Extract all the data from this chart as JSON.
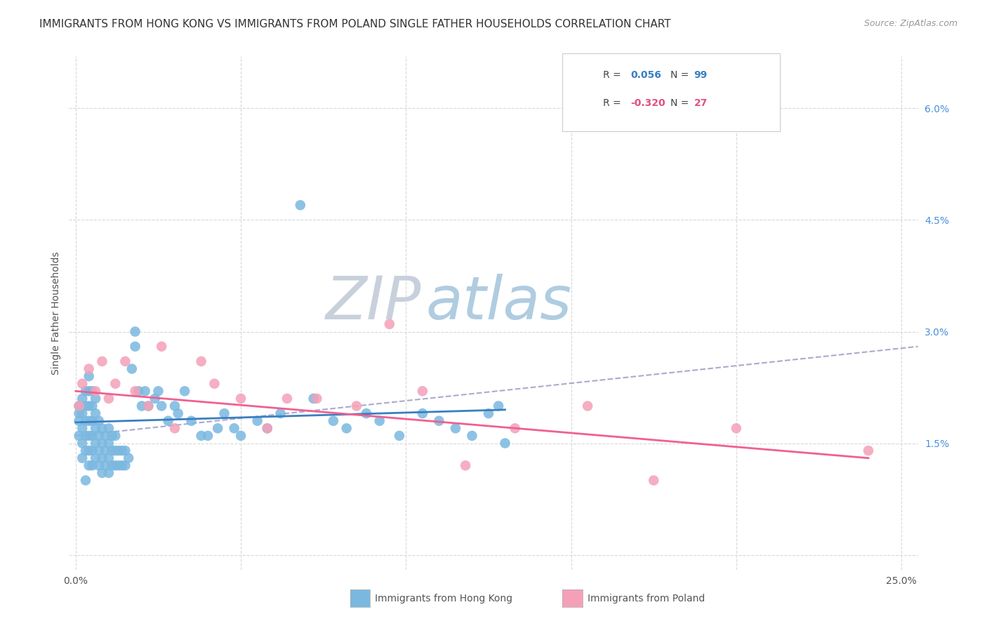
{
  "title": "IMMIGRANTS FROM HONG KONG VS IMMIGRANTS FROM POLAND SINGLE FATHER HOUSEHOLDS CORRELATION CHART",
  "source": "Source: ZipAtlas.com",
  "ylabel": "Single Father Households",
  "x_ticks": [
    0.0,
    0.05,
    0.1,
    0.15,
    0.2,
    0.25
  ],
  "y_ticks_right": [
    0.0,
    0.015,
    0.03,
    0.045,
    0.06
  ],
  "y_tick_labels_right": [
    "",
    "1.5%",
    "3.0%",
    "4.5%",
    "6.0%"
  ],
  "xlim": [
    -0.002,
    0.255
  ],
  "ylim": [
    -0.002,
    0.067
  ],
  "hk_color": "#7ab8e0",
  "pl_color": "#f4a0b8",
  "hk_line_color": "#3a7fc1",
  "pl_line_color": "#f06090",
  "trend_dash_color": "#aaaacc",
  "watermark_ZIP_color": "#c8d0dc",
  "watermark_atlas_color": "#b0cce0",
  "background_color": "#ffffff",
  "grid_color": "#d8d8d8",
  "title_fontsize": 11,
  "label_fontsize": 10,
  "tick_fontsize": 10,
  "hk_x": [
    0.001,
    0.001,
    0.001,
    0.001,
    0.002,
    0.002,
    0.002,
    0.002,
    0.002,
    0.003,
    0.003,
    0.003,
    0.003,
    0.003,
    0.003,
    0.004,
    0.004,
    0.004,
    0.004,
    0.004,
    0.004,
    0.004,
    0.005,
    0.005,
    0.005,
    0.005,
    0.005,
    0.005,
    0.006,
    0.006,
    0.006,
    0.006,
    0.006,
    0.007,
    0.007,
    0.007,
    0.007,
    0.008,
    0.008,
    0.008,
    0.008,
    0.009,
    0.009,
    0.009,
    0.01,
    0.01,
    0.01,
    0.01,
    0.011,
    0.011,
    0.011,
    0.012,
    0.012,
    0.012,
    0.013,
    0.013,
    0.014,
    0.014,
    0.015,
    0.015,
    0.016,
    0.017,
    0.018,
    0.018,
    0.019,
    0.02,
    0.021,
    0.022,
    0.024,
    0.025,
    0.026,
    0.028,
    0.03,
    0.031,
    0.033,
    0.035,
    0.038,
    0.04,
    0.043,
    0.045,
    0.048,
    0.05,
    0.055,
    0.058,
    0.062,
    0.068,
    0.072,
    0.078,
    0.082,
    0.088,
    0.092,
    0.098,
    0.105,
    0.11,
    0.115,
    0.12,
    0.125,
    0.128,
    0.13
  ],
  "hk_y": [
    0.018,
    0.019,
    0.02,
    0.016,
    0.015,
    0.017,
    0.019,
    0.021,
    0.013,
    0.014,
    0.016,
    0.018,
    0.02,
    0.022,
    0.01,
    0.012,
    0.014,
    0.016,
    0.018,
    0.02,
    0.022,
    0.024,
    0.012,
    0.014,
    0.016,
    0.018,
    0.02,
    0.022,
    0.013,
    0.015,
    0.017,
    0.019,
    0.021,
    0.012,
    0.014,
    0.016,
    0.018,
    0.011,
    0.013,
    0.015,
    0.017,
    0.012,
    0.014,
    0.016,
    0.011,
    0.013,
    0.015,
    0.017,
    0.012,
    0.014,
    0.016,
    0.012,
    0.014,
    0.016,
    0.012,
    0.014,
    0.012,
    0.014,
    0.012,
    0.014,
    0.013,
    0.025,
    0.03,
    0.028,
    0.022,
    0.02,
    0.022,
    0.02,
    0.021,
    0.022,
    0.02,
    0.018,
    0.02,
    0.019,
    0.022,
    0.018,
    0.016,
    0.016,
    0.017,
    0.019,
    0.017,
    0.016,
    0.018,
    0.017,
    0.019,
    0.047,
    0.021,
    0.018,
    0.017,
    0.019,
    0.018,
    0.016,
    0.019,
    0.018,
    0.017,
    0.016,
    0.019,
    0.02,
    0.015
  ],
  "pl_x": [
    0.001,
    0.002,
    0.004,
    0.006,
    0.008,
    0.01,
    0.012,
    0.015,
    0.018,
    0.022,
    0.026,
    0.03,
    0.038,
    0.042,
    0.05,
    0.058,
    0.064,
    0.073,
    0.085,
    0.095,
    0.105,
    0.118,
    0.133,
    0.155,
    0.175,
    0.2,
    0.24
  ],
  "pl_y": [
    0.02,
    0.023,
    0.025,
    0.022,
    0.026,
    0.021,
    0.023,
    0.026,
    0.022,
    0.02,
    0.028,
    0.017,
    0.026,
    0.023,
    0.021,
    0.017,
    0.021,
    0.021,
    0.02,
    0.031,
    0.022,
    0.012,
    0.017,
    0.02,
    0.01,
    0.017,
    0.014
  ],
  "hk_trend_x0": 0.0,
  "hk_trend_x1": 0.13,
  "hk_trend_y0": 0.0178,
  "hk_trend_y1": 0.0195,
  "pl_trend_x0": 0.0,
  "pl_trend_x1": 0.24,
  "pl_trend_y0": 0.022,
  "pl_trend_y1": 0.013,
  "dash_trend_x0": 0.0,
  "dash_trend_x1": 0.255,
  "dash_trend_y0": 0.016,
  "dash_trend_y1": 0.028
}
